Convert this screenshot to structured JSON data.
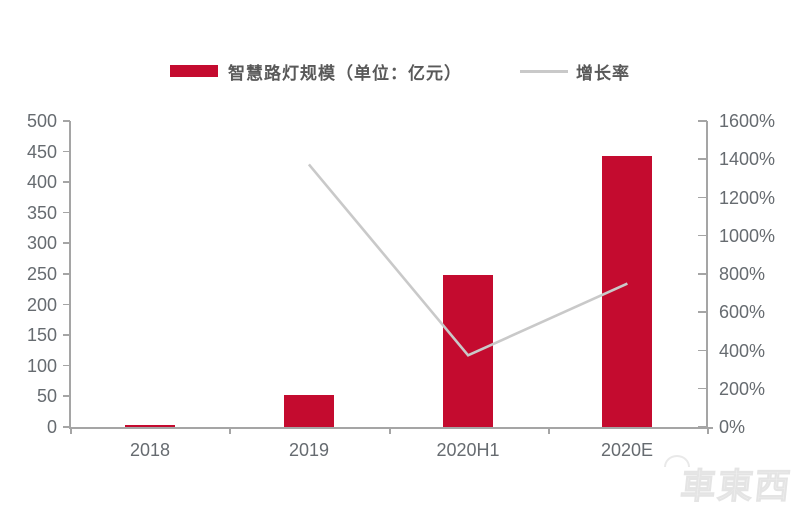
{
  "legend": {
    "items": [
      {
        "label": "智慧路灯规模（单位：亿元）",
        "swatch": "bar-swatch"
      },
      {
        "label": "增长率",
        "swatch": "line-swatch"
      }
    ]
  },
  "chart_data": {
    "type": "bar+line",
    "title": "",
    "categories": [
      "2018",
      "2019",
      "2020H1",
      "2020E"
    ],
    "series": [
      {
        "name": "智慧路灯规模（单位：亿元）",
        "type": "bar",
        "axis": "left",
        "values": [
          3,
          52,
          248,
          442
        ]
      },
      {
        "name": "增长率",
        "type": "line",
        "axis": "right",
        "values": [
          null,
          1373,
          375,
          750
        ]
      }
    ],
    "left_axis": {
      "min": 0,
      "max": 500,
      "step": 50,
      "tick_labels": [
        "500",
        "450",
        "400",
        "350",
        "300",
        "250",
        "200",
        "150",
        "100",
        "50",
        "0"
      ]
    },
    "right_axis": {
      "min": 0,
      "max": 1600,
      "step": 200,
      "tick_labels": [
        "1600%",
        "1400%",
        "1200%",
        "1000%",
        "800%",
        "600%",
        "400%",
        "200%",
        "0%"
      ]
    },
    "grid": false,
    "legend_position": "top-center"
  },
  "colors": {
    "bar": "#C40B2F",
    "line": "#C9C9C9",
    "axis": "#A5A5A5",
    "tick_text": "#666B70",
    "legend_text": "#595959",
    "watermark": "#ECECEC"
  },
  "watermark": {
    "text": "車東西"
  }
}
